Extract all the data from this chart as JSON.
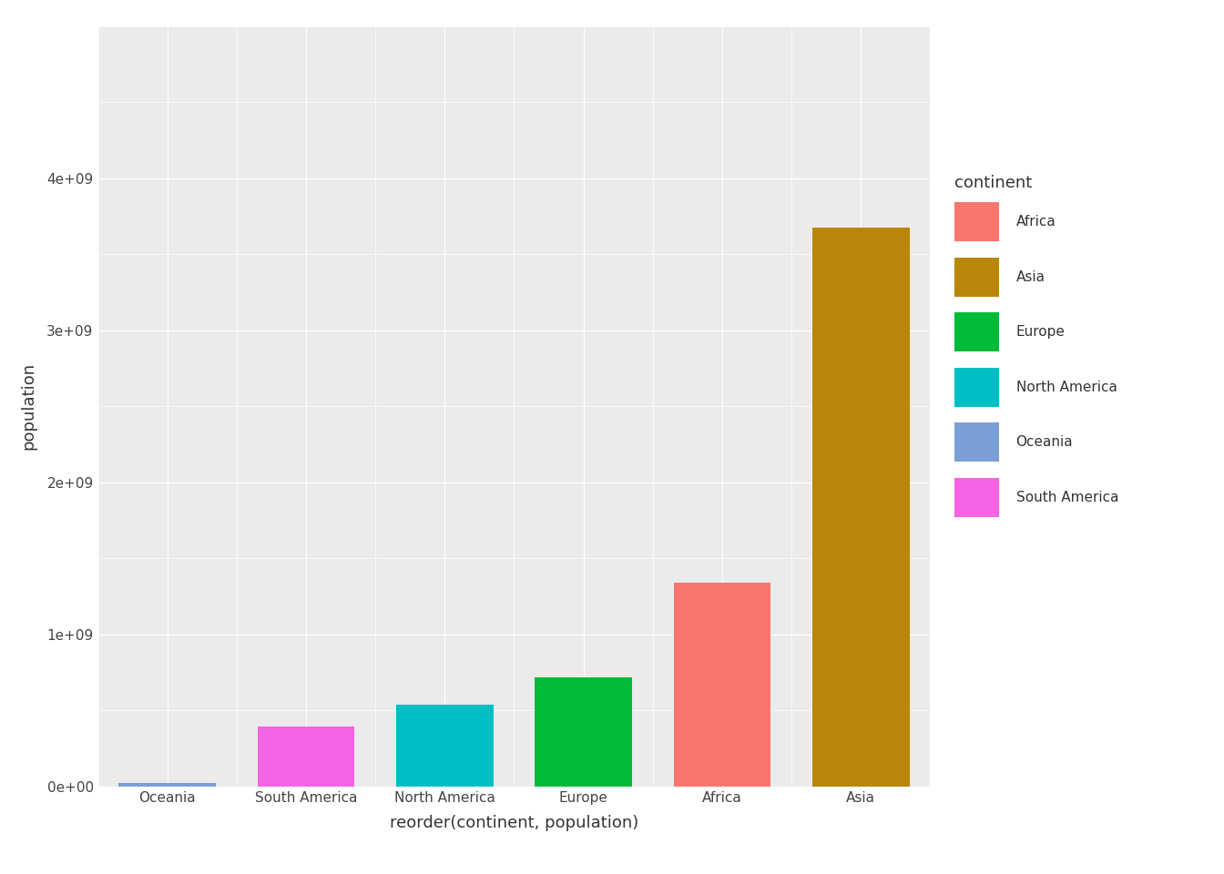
{
  "categories": [
    "Oceania",
    "South America",
    "North America",
    "Europe",
    "Africa",
    "Asia"
  ],
  "values": [
    24549947,
    396234830,
    539560000,
    720556493,
    1340598374,
    3674609600
  ],
  "bar_colors": [
    "#7B9FD4",
    "#F564E3",
    "#00BFC4",
    "#00BA38",
    "#F8766D",
    "#B8860B"
  ],
  "legend_colors": {
    "Africa": "#F8766D",
    "Asia": "#B8860B",
    "Europe": "#00BA38",
    "North America": "#00BFC4",
    "Oceania": "#7B9FD4",
    "South America": "#F564E3"
  },
  "xlabel": "reorder(continent, population)",
  "ylabel": "population",
  "ylim_max": 5000000000.0,
  "yticks": [
    0,
    1000000000.0,
    2000000000.0,
    3000000000.0,
    4000000000.0
  ],
  "bg_color": "#EBEBEB",
  "grid_color": "#FFFFFF",
  "axis_label_fontsize": 13,
  "tick_fontsize": 11,
  "legend_title": "continent",
  "legend_title_fontsize": 13,
  "legend_text_fontsize": 11
}
